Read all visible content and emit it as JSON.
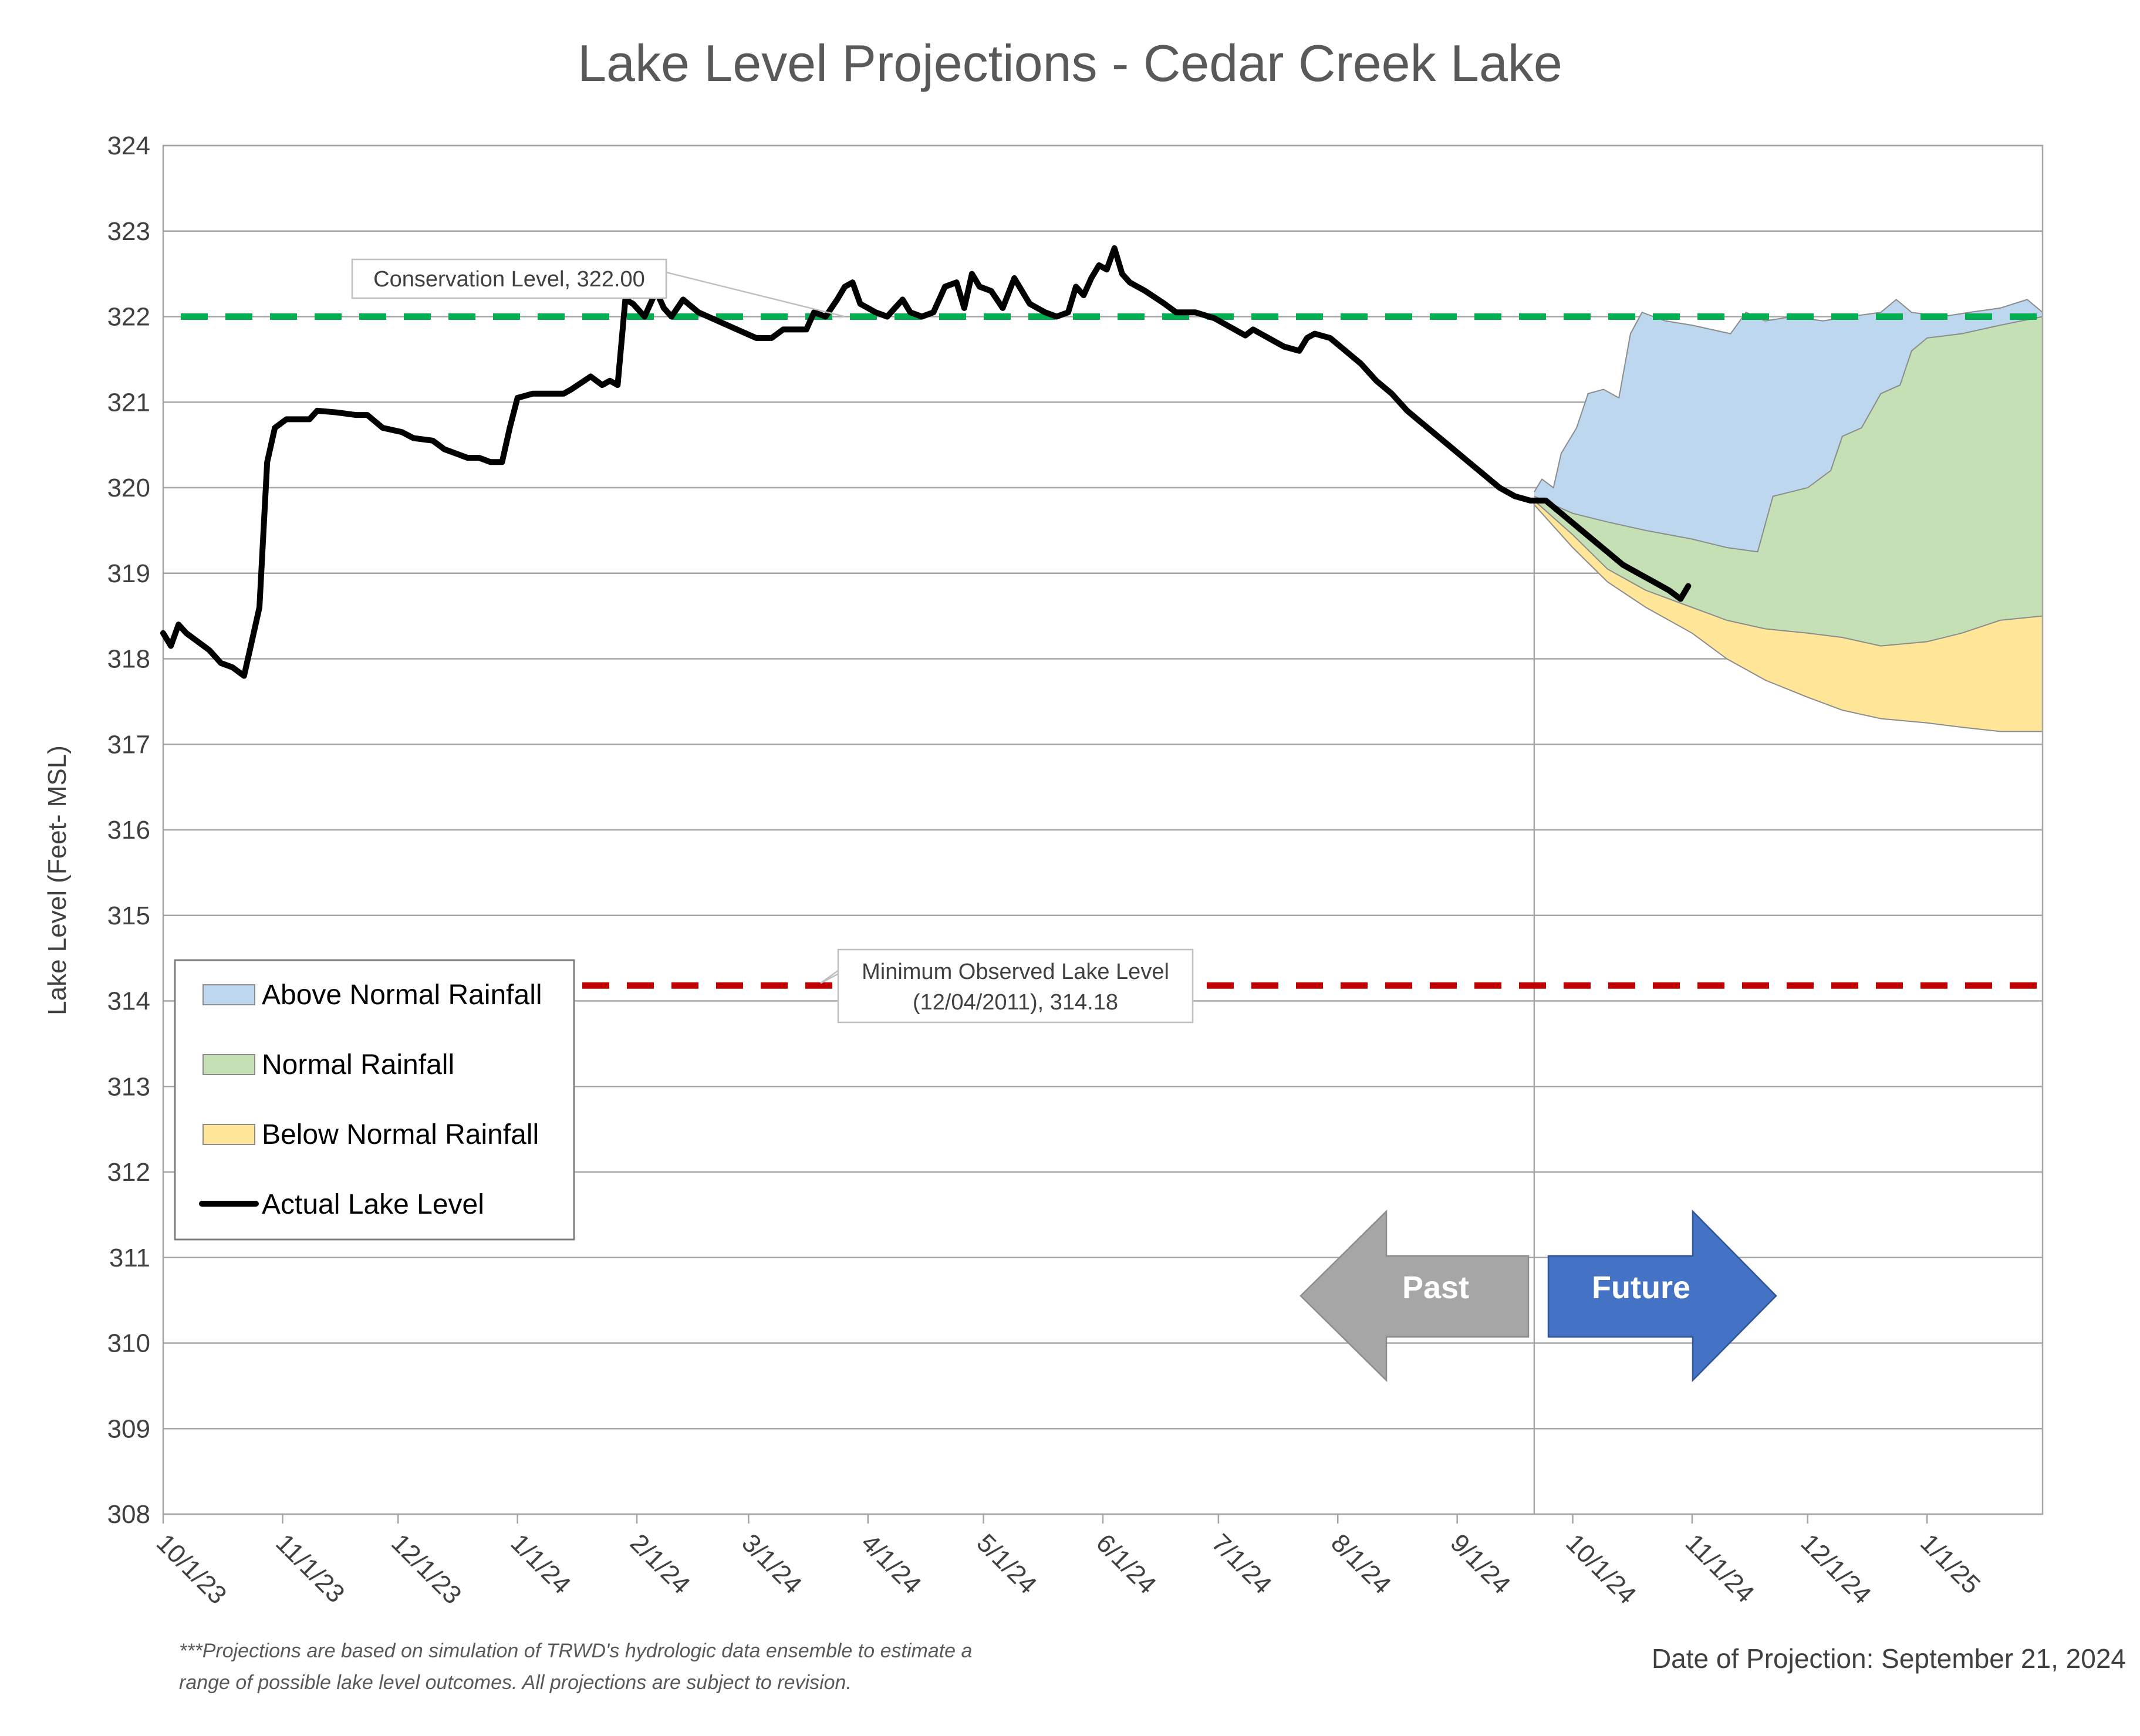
{
  "chart_data": {
    "type": "line",
    "title": "Lake Level Projections - Cedar Creek Lake",
    "ylabel": "Lake Level (Feet- MSL)",
    "xlabel": "",
    "ylim": [
      308,
      324
    ],
    "yticks": [
      308,
      309,
      310,
      311,
      312,
      313,
      314,
      315,
      316,
      317,
      318,
      319,
      320,
      321,
      322,
      323,
      324
    ],
    "xlim": [
      "2023-10-01",
      "2025-01-31"
    ],
    "xticks": [
      {
        "date": "2023-10-01",
        "label": "10/1/23"
      },
      {
        "date": "2023-11-01",
        "label": "11/1/23"
      },
      {
        "date": "2023-12-01",
        "label": "12/1/23"
      },
      {
        "date": "2024-01-01",
        "label": "1/1/24"
      },
      {
        "date": "2024-02-01",
        "label": "2/1/24"
      },
      {
        "date": "2024-03-01",
        "label": "3/1/24"
      },
      {
        "date": "2024-04-01",
        "label": "4/1/24"
      },
      {
        "date": "2024-05-01",
        "label": "5/1/24"
      },
      {
        "date": "2024-06-01",
        "label": "6/1/24"
      },
      {
        "date": "2024-07-01",
        "label": "7/1/24"
      },
      {
        "date": "2024-08-01",
        "label": "8/1/24"
      },
      {
        "date": "2024-09-01",
        "label": "9/1/24"
      },
      {
        "date": "2024-10-01",
        "label": "10/1/24"
      },
      {
        "date": "2024-11-01",
        "label": "11/1/24"
      },
      {
        "date": "2024-12-01",
        "label": "12/1/24"
      },
      {
        "date": "2025-01-01",
        "label": "1/1/25"
      }
    ],
    "grid": "horizontal",
    "legend_position": "left",
    "reference_lines": [
      {
        "name": "Conservation Level",
        "value": 322.0,
        "color": "#00b050",
        "style": "dashed",
        "label": "Conservation Level, 322.00"
      },
      {
        "name": "Minimum Observed Lake Level",
        "value": 314.18,
        "color": "#c00000",
        "style": "dashed",
        "label_line1": "Minimum Observed Lake Level",
        "label_line2": "(12/04/2011), 314.18"
      }
    ],
    "projection_start": "2024-09-21",
    "bands": [
      {
        "name": "Above Normal Rainfall",
        "color": "#bdd7ee",
        "upper": [
          [
            "2024-09-21",
            319.95
          ],
          [
            "2024-09-23",
            320.1
          ],
          [
            "2024-09-26",
            320.0
          ],
          [
            "2024-09-28",
            320.4
          ],
          [
            "2024-10-02",
            320.7
          ],
          [
            "2024-10-05",
            321.1
          ],
          [
            "2024-10-09",
            321.15
          ],
          [
            "2024-10-13",
            321.05
          ],
          [
            "2024-10-16",
            321.8
          ],
          [
            "2024-10-19",
            322.05
          ],
          [
            "2024-10-25",
            321.95
          ],
          [
            "2024-11-01",
            321.9
          ],
          [
            "2024-11-06",
            321.85
          ],
          [
            "2024-11-11",
            321.8
          ],
          [
            "2024-11-15",
            322.05
          ],
          [
            "2024-11-20",
            321.95
          ],
          [
            "2024-11-27",
            322.0
          ],
          [
            "2024-12-05",
            321.95
          ],
          [
            "2024-12-12",
            322.0
          ],
          [
            "2024-12-20",
            322.05
          ],
          [
            "2024-12-24",
            322.2
          ],
          [
            "2024-12-28",
            322.05
          ],
          [
            "2025-01-05",
            322.0
          ],
          [
            "2025-01-12",
            322.05
          ],
          [
            "2025-01-20",
            322.1
          ],
          [
            "2025-01-27",
            322.2
          ],
          [
            "2025-01-31",
            322.05
          ]
        ],
        "lower": [
          [
            "2024-09-21",
            319.9
          ],
          [
            "2024-10-01",
            319.7
          ],
          [
            "2024-10-10",
            319.6
          ],
          [
            "2024-10-20",
            319.5
          ],
          [
            "2024-11-01",
            319.4
          ],
          [
            "2024-11-10",
            319.3
          ],
          [
            "2024-11-18",
            319.25
          ],
          [
            "2024-11-22",
            319.9
          ],
          [
            "2024-12-01",
            320.0
          ],
          [
            "2024-12-07",
            320.2
          ],
          [
            "2024-12-10",
            320.6
          ],
          [
            "2024-12-15",
            320.7
          ],
          [
            "2024-12-20",
            321.1
          ],
          [
            "2024-12-25",
            321.2
          ],
          [
            "2024-12-28",
            321.6
          ],
          [
            "2025-01-01",
            321.75
          ],
          [
            "2025-01-10",
            321.8
          ],
          [
            "2025-01-20",
            321.9
          ],
          [
            "2025-01-31",
            322.0
          ]
        ]
      },
      {
        "name": "Normal Rainfall",
        "color": "#c5e0b4",
        "upper": [
          [
            "2024-09-21",
            319.9
          ],
          [
            "2024-10-01",
            319.7
          ],
          [
            "2024-10-10",
            319.6
          ],
          [
            "2024-10-20",
            319.5
          ],
          [
            "2024-11-01",
            319.4
          ],
          [
            "2024-11-10",
            319.3
          ],
          [
            "2024-11-18",
            319.25
          ],
          [
            "2024-11-22",
            319.9
          ],
          [
            "2024-12-01",
            320.0
          ],
          [
            "2024-12-07",
            320.2
          ],
          [
            "2024-12-10",
            320.6
          ],
          [
            "2024-12-15",
            320.7
          ],
          [
            "2024-12-20",
            321.1
          ],
          [
            "2024-12-25",
            321.2
          ],
          [
            "2024-12-28",
            321.6
          ],
          [
            "2025-01-01",
            321.75
          ],
          [
            "2025-01-10",
            321.8
          ],
          [
            "2025-01-20",
            321.9
          ],
          [
            "2025-01-31",
            322.0
          ]
        ],
        "lower": [
          [
            "2024-09-21",
            319.85
          ],
          [
            "2024-10-01",
            319.45
          ],
          [
            "2024-10-10",
            319.05
          ],
          [
            "2024-10-20",
            318.8
          ],
          [
            "2024-11-01",
            318.6
          ],
          [
            "2024-11-10",
            318.45
          ],
          [
            "2024-11-20",
            318.35
          ],
          [
            "2024-12-01",
            318.3
          ],
          [
            "2024-12-10",
            318.25
          ],
          [
            "2024-12-20",
            318.15
          ],
          [
            "2025-01-01",
            318.2
          ],
          [
            "2025-01-10",
            318.3
          ],
          [
            "2025-01-20",
            318.45
          ],
          [
            "2025-01-31",
            318.5
          ]
        ]
      },
      {
        "name": "Below Normal Rainfall",
        "color": "#ffe699",
        "upper": [
          [
            "2024-09-21",
            319.85
          ],
          [
            "2024-10-01",
            319.45
          ],
          [
            "2024-10-10",
            319.05
          ],
          [
            "2024-10-20",
            318.8
          ],
          [
            "2024-11-01",
            318.6
          ],
          [
            "2024-11-10",
            318.45
          ],
          [
            "2024-11-20",
            318.35
          ],
          [
            "2024-12-01",
            318.3
          ],
          [
            "2024-12-10",
            318.25
          ],
          [
            "2024-12-20",
            318.15
          ],
          [
            "2025-01-01",
            318.2
          ],
          [
            "2025-01-10",
            318.3
          ],
          [
            "2025-01-20",
            318.45
          ],
          [
            "2025-01-31",
            318.5
          ]
        ],
        "lower": [
          [
            "2024-09-21",
            319.8
          ],
          [
            "2024-10-01",
            319.3
          ],
          [
            "2024-10-10",
            318.9
          ],
          [
            "2024-10-20",
            318.6
          ],
          [
            "2024-11-01",
            318.3
          ],
          [
            "2024-11-10",
            318.0
          ],
          [
            "2024-11-20",
            317.75
          ],
          [
            "2024-12-01",
            317.55
          ],
          [
            "2024-12-10",
            317.4
          ],
          [
            "2024-12-20",
            317.3
          ],
          [
            "2025-01-01",
            317.25
          ],
          [
            "2025-01-10",
            317.2
          ],
          [
            "2025-01-20",
            317.15
          ],
          [
            "2025-01-31",
            317.15
          ]
        ]
      }
    ],
    "series": [
      {
        "name": "Actual Lake Level",
        "color": "#000000",
        "points": [
          [
            "2023-10-01",
            318.3
          ],
          [
            "2023-10-03",
            318.15
          ],
          [
            "2023-10-05",
            318.4
          ],
          [
            "2023-10-07",
            318.3
          ],
          [
            "2023-10-10",
            318.2
          ],
          [
            "2023-10-13",
            318.1
          ],
          [
            "2023-10-16",
            317.95
          ],
          [
            "2023-10-19",
            317.9
          ],
          [
            "2023-10-22",
            317.8
          ],
          [
            "2023-10-24",
            318.2
          ],
          [
            "2023-10-26",
            318.6
          ],
          [
            "2023-10-28",
            320.3
          ],
          [
            "2023-10-30",
            320.7
          ],
          [
            "2023-11-02",
            320.8
          ],
          [
            "2023-11-08",
            320.8
          ],
          [
            "2023-11-10",
            320.9
          ],
          [
            "2023-11-15",
            320.88
          ],
          [
            "2023-11-20",
            320.85
          ],
          [
            "2023-11-23",
            320.85
          ],
          [
            "2023-11-27",
            320.7
          ],
          [
            "2023-12-02",
            320.65
          ],
          [
            "2023-12-05",
            320.58
          ],
          [
            "2023-12-10",
            320.55
          ],
          [
            "2023-12-13",
            320.45
          ],
          [
            "2023-12-16",
            320.4
          ],
          [
            "2023-12-19",
            320.35
          ],
          [
            "2023-12-22",
            320.35
          ],
          [
            "2023-12-25",
            320.3
          ],
          [
            "2023-12-28",
            320.3
          ],
          [
            "2023-12-30",
            320.7
          ],
          [
            "2024-01-01",
            321.05
          ],
          [
            "2024-01-05",
            321.1
          ],
          [
            "2024-01-10",
            321.1
          ],
          [
            "2024-01-13",
            321.1
          ],
          [
            "2024-01-15",
            321.15
          ],
          [
            "2024-01-20",
            321.3
          ],
          [
            "2024-01-23",
            321.2
          ],
          [
            "2024-01-25",
            321.25
          ],
          [
            "2024-01-27",
            321.2
          ],
          [
            "2024-01-29",
            322.2
          ],
          [
            "2024-01-31",
            322.15
          ],
          [
            "2024-02-03",
            322.0
          ],
          [
            "2024-02-06",
            322.3
          ],
          [
            "2024-02-08",
            322.1
          ],
          [
            "2024-02-10",
            322.0
          ],
          [
            "2024-02-13",
            322.2
          ],
          [
            "2024-02-17",
            322.05
          ],
          [
            "2024-02-22",
            321.95
          ],
          [
            "2024-02-27",
            321.85
          ],
          [
            "2024-03-03",
            321.75
          ],
          [
            "2024-03-07",
            321.75
          ],
          [
            "2024-03-10",
            321.85
          ],
          [
            "2024-03-16",
            321.85
          ],
          [
            "2024-03-18",
            322.05
          ],
          [
            "2024-03-21",
            322.0
          ],
          [
            "2024-03-24",
            322.2
          ],
          [
            "2024-03-26",
            322.35
          ],
          [
            "2024-03-28",
            322.4
          ],
          [
            "2024-03-30",
            322.15
          ],
          [
            "2024-04-03",
            322.05
          ],
          [
            "2024-04-06",
            322.0
          ],
          [
            "2024-04-08",
            322.1
          ],
          [
            "2024-04-10",
            322.2
          ],
          [
            "2024-04-12",
            322.05
          ],
          [
            "2024-04-15",
            322.0
          ],
          [
            "2024-04-18",
            322.05
          ],
          [
            "2024-04-21",
            322.35
          ],
          [
            "2024-04-24",
            322.4
          ],
          [
            "2024-04-26",
            322.1
          ],
          [
            "2024-04-28",
            322.5
          ],
          [
            "2024-04-30",
            322.35
          ],
          [
            "2024-05-03",
            322.3
          ],
          [
            "2024-05-06",
            322.1
          ],
          [
            "2024-05-09",
            322.45
          ],
          [
            "2024-05-11",
            322.3
          ],
          [
            "2024-05-13",
            322.15
          ],
          [
            "2024-05-17",
            322.05
          ],
          [
            "2024-05-20",
            322.0
          ],
          [
            "2024-05-23",
            322.05
          ],
          [
            "2024-05-25",
            322.35
          ],
          [
            "2024-05-27",
            322.25
          ],
          [
            "2024-05-29",
            322.45
          ],
          [
            "2024-05-31",
            322.6
          ],
          [
            "2024-06-02",
            322.55
          ],
          [
            "2024-06-04",
            322.8
          ],
          [
            "2024-06-06",
            322.5
          ],
          [
            "2024-06-08",
            322.4
          ],
          [
            "2024-06-12",
            322.3
          ],
          [
            "2024-06-17",
            322.15
          ],
          [
            "2024-06-20",
            322.05
          ],
          [
            "2024-06-25",
            322.05
          ],
          [
            "2024-06-30",
            321.98
          ],
          [
            "2024-07-04",
            321.88
          ],
          [
            "2024-07-08",
            321.78
          ],
          [
            "2024-07-10",
            321.85
          ],
          [
            "2024-07-14",
            321.75
          ],
          [
            "2024-07-18",
            321.65
          ],
          [
            "2024-07-22",
            321.6
          ],
          [
            "2024-07-24",
            321.75
          ],
          [
            "2024-07-26",
            321.8
          ],
          [
            "2024-07-30",
            321.75
          ],
          [
            "2024-08-03",
            321.6
          ],
          [
            "2024-08-07",
            321.45
          ],
          [
            "2024-08-11",
            321.25
          ],
          [
            "2024-08-15",
            321.1
          ],
          [
            "2024-08-19",
            320.9
          ],
          [
            "2024-08-23",
            320.75
          ],
          [
            "2024-08-27",
            320.6
          ],
          [
            "2024-08-31",
            320.45
          ],
          [
            "2024-09-04",
            320.3
          ],
          [
            "2024-09-08",
            320.15
          ],
          [
            "2024-09-12",
            320.0
          ],
          [
            "2024-09-16",
            319.9
          ],
          [
            "2024-09-20",
            319.85
          ],
          [
            "2024-09-24",
            319.85
          ],
          [
            "2024-09-28",
            319.7
          ],
          [
            "2024-10-02",
            319.55
          ],
          [
            "2024-10-06",
            319.4
          ],
          [
            "2024-10-10",
            319.25
          ],
          [
            "2024-10-14",
            319.1
          ],
          [
            "2024-10-18",
            319.0
          ],
          [
            "2024-10-22",
            318.9
          ],
          [
            "2024-10-26",
            318.8
          ],
          [
            "2024-10-29",
            318.7
          ],
          [
            "2024-10-31",
            318.85
          ]
        ]
      }
    ],
    "legend": [
      {
        "label": "Above Normal Rainfall",
        "kind": "patch",
        "color": "#bdd7ee"
      },
      {
        "label": "Normal Rainfall",
        "kind": "patch",
        "color": "#c5e0b4"
      },
      {
        "label": "Below Normal Rainfall",
        "kind": "patch",
        "color": "#ffe699"
      },
      {
        "label": "Actual Lake Level",
        "kind": "line",
        "color": "#000000"
      }
    ],
    "annotations": {
      "past_arrow": {
        "label": "Past",
        "color": "#a6a6a6"
      },
      "future_arrow": {
        "label": "Future",
        "color": "#4472c4"
      },
      "footnote_line1": "***Projections are based on simulation of TRWD's hydrologic data ensemble to estimate a",
      "footnote_line2": "range of possible lake level outcomes.  All projections are subject to revision.",
      "projection_date": "Date of Projection: September 21, 2024"
    }
  }
}
